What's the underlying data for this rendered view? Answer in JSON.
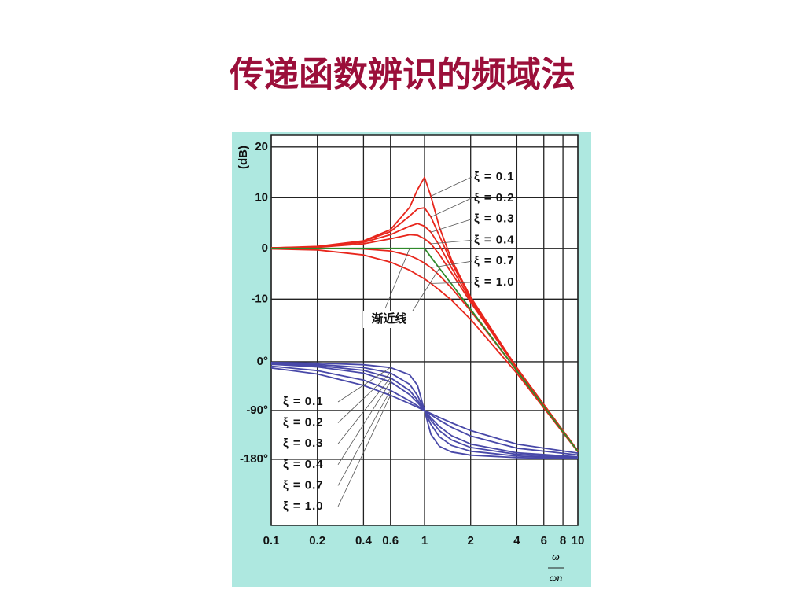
{
  "slide_title": "传递函数辨识的频域法",
  "chart_data": [
    {
      "type": "line",
      "ylabel": "(dB)",
      "xscale": "log",
      "xlim": [
        0.1,
        10
      ],
      "ylim": [
        -54.6,
        22.3
      ],
      "yticks": [
        20,
        10,
        0,
        -10
      ],
      "grid": true,
      "x": [
        0.1,
        0.2,
        0.4,
        0.6,
        0.8,
        0.9,
        1,
        1.1,
        1.25,
        1.5,
        2,
        4,
        10
      ],
      "series": [
        {
          "name": "ξ = 0.1",
          "color": "#e8261c",
          "values": [
            0.1,
            0.4,
            1.5,
            3.7,
            8.1,
            11.6,
            14.0,
            10.3,
            4.2,
            -2.2,
            -9.6,
            -23.5,
            -39.9
          ]
        },
        {
          "name": "ξ = 0.2",
          "color": "#e8261c",
          "values": [
            0.1,
            0.3,
            1.4,
            3.3,
            6.4,
            7.8,
            8.0,
            6.2,
            2.5,
            -2.8,
            -9.8,
            -23.6,
            -39.9
          ]
        },
        {
          "name": "ξ = 0.3",
          "color": "#e8261c",
          "values": [
            0.1,
            0.3,
            1.2,
            2.7,
            4.4,
            4.9,
            4.4,
            3.2,
            0.6,
            -3.8,
            -10.2,
            -23.6,
            -39.9
          ]
        },
        {
          "name": "ξ = 0.4",
          "color": "#e8261c",
          "values": [
            0.1,
            0.2,
            0.9,
            1.9,
            2.7,
            2.6,
            1.9,
            0.9,
            -1.2,
            -4.8,
            -10.6,
            -23.7,
            -39.9
          ]
        },
        {
          "name": "ξ = 0.7",
          "color": "#e8261c",
          "values": [
            0,
            0,
            -0.1,
            -0.5,
            -1.4,
            -2.1,
            -2.9,
            -3.8,
            -5.3,
            -7.8,
            -12.3,
            -24.1,
            -40.0
          ]
        },
        {
          "name": "ξ = 1.0",
          "color": "#e8261c",
          "values": [
            -0.1,
            -0.3,
            -1.3,
            -2.7,
            -4.3,
            -5.2,
            -6.0,
            -6.9,
            -8.2,
            -10.2,
            -14.0,
            -24.6,
            -40.1
          ]
        },
        {
          "name": "渐近线",
          "color": "#2f8a2a",
          "values": [
            0,
            0,
            0,
            0,
            0,
            0,
            0,
            -1.7,
            -3.9,
            -7.0,
            -12.0,
            -24.1,
            -40.0
          ]
        }
      ]
    },
    {
      "type": "line",
      "xscale": "log",
      "xlim": [
        0.1,
        10
      ],
      "xticks": [
        0.1,
        0.2,
        0.4,
        0.6,
        1,
        2,
        4,
        6,
        8,
        10
      ],
      "xlabel": [
        "ω",
        "ωn"
      ],
      "ylim": [
        -302,
        418
      ],
      "yticks": [
        {
          "value": 0,
          "label": "0°"
        },
        {
          "value": -90,
          "label": "-90°"
        },
        {
          "value": -180,
          "label": "-180°"
        }
      ],
      "grid": true,
      "x": [
        0.1,
        0.2,
        0.4,
        0.6,
        0.8,
        0.9,
        1,
        1.1,
        1.25,
        1.5,
        2,
        4,
        10
      ],
      "series": [
        {
          "name": "ξ = 0.1",
          "color": "#4848a8",
          "values": [
            -1.2,
            -2.4,
            -5.4,
            -10.6,
            -24.0,
            -43.5,
            -90,
            -133.7,
            -156.0,
            -166.5,
            -172.4,
            -176.9,
            -178.8
          ]
        },
        {
          "name": "ξ = 0.2",
          "color": "#4848a8",
          "values": [
            -2.3,
            -4.8,
            -10.8,
            -20.6,
            -41.6,
            -62.2,
            -90,
            -115.5,
            -138.4,
            -154.4,
            -165.1,
            -173.9,
            -177.7
          ]
        },
        {
          "name": "ξ = 0.3",
          "color": "#4848a8",
          "values": [
            -3.5,
            -7.1,
            -15.9,
            -29.4,
            -53.1,
            -70.6,
            -90,
            -107.6,
            -126.9,
            -144.2,
            -158.2,
            -170.9,
            -176.5
          ]
        },
        {
          "name": "ξ = 0.4",
          "color": "#4848a8",
          "values": [
            -4.6,
            -9.5,
            -20.9,
            -36.9,
            -60.6,
            -75.2,
            -90,
            -103.4,
            -119.4,
            -136.2,
            -151.9,
            -168.0,
            -175.4
          ]
        },
        {
          "name": "ξ = 0.7",
          "color": "#4848a8",
          "values": [
            -8.0,
            -16.3,
            -33.7,
            -52.7,
            -72.2,
            -81.4,
            -90,
            -97.8,
            -107.8,
            -120.8,
            -137.0,
            -159.5,
            -172.0
          ]
        },
        {
          "name": "ξ = 1.0",
          "color": "#4848a8",
          "values": [
            -11.4,
            -22.6,
            -43.6,
            -61.9,
            -77.3,
            -84.0,
            -90,
            -95.5,
            -102.7,
            -112.6,
            -126.9,
            -151.9,
            -168.6
          ]
        }
      ]
    }
  ]
}
